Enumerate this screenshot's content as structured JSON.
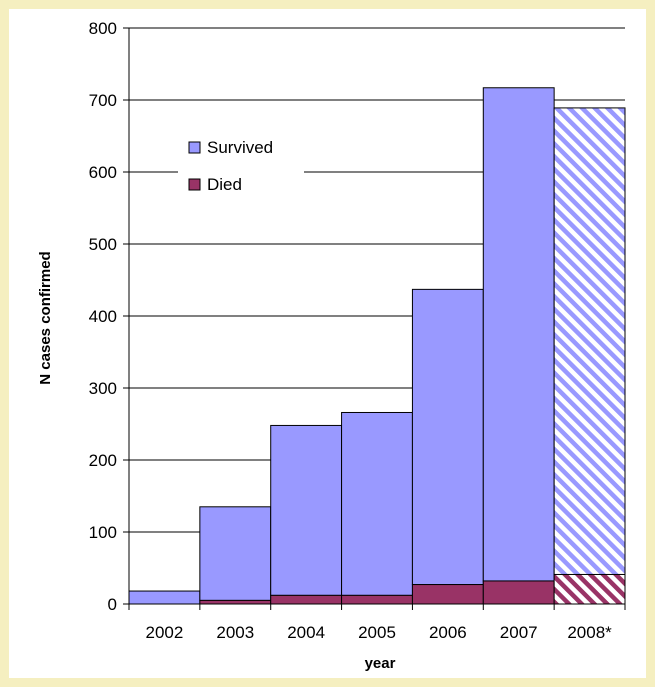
{
  "chart_data": {
    "type": "bar",
    "stacked": true,
    "categories": [
      "2002",
      "2003",
      "2004",
      "2005",
      "2006",
      "2007",
      "2008*"
    ],
    "series": [
      {
        "name": "Died",
        "values": [
          0,
          5,
          12,
          12,
          27,
          32,
          41
        ]
      },
      {
        "name": "Survived",
        "values": [
          18,
          130,
          236,
          254,
          410,
          685,
          648
        ]
      }
    ],
    "hatched_categories": [
      "2008*"
    ],
    "xlabel": "year",
    "ylabel": "N cases confirmed",
    "ylim": [
      0,
      800
    ],
    "yticks": [
      "0",
      "100",
      "200",
      "300",
      "400",
      "500",
      "600",
      "700",
      "800"
    ],
    "grid": true,
    "legend_position": "top-left",
    "colors": {
      "Survived": "#9999ff",
      "Died": "#993366",
      "background": "#f5efc0",
      "grid": "#000000"
    }
  }
}
